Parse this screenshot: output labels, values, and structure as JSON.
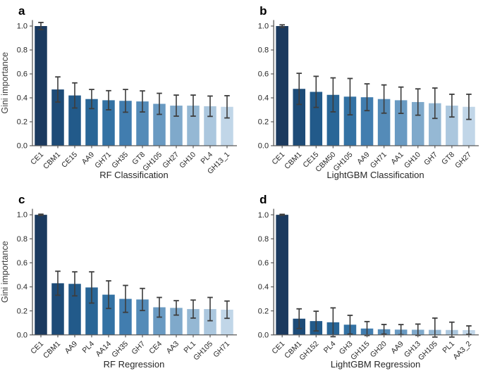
{
  "figure": {
    "background": "#ffffff",
    "bar_palette": [
      "#1b3a5f",
      "#1d4b77",
      "#225a8a",
      "#296697",
      "#3372a4",
      "#417daf",
      "#548bb8",
      "#699ac2",
      "#7fa9cb",
      "#95b8d4",
      "#abc7de",
      "#c1d6e8"
    ],
    "error_color": "#3d3d3d",
    "axis_color": "#5a5a5a",
    "tick_label_color": "#262626",
    "axis_label_color": "#404040",
    "letter_color": "#000000"
  },
  "chart_data": [
    {
      "type": "bar",
      "panel": "a",
      "xlabel": "RF Classification",
      "ylabel": "Gini importance",
      "ylim": [
        0,
        1.05
      ],
      "yticks": [
        "0.0",
        "0.2",
        "0.4",
        "0.6",
        "0.8",
        "1.0"
      ],
      "grid": false,
      "legend": "none",
      "categories": [
        "CE1",
        "CBM1",
        "CE15",
        "AA9",
        "GH71",
        "GH35",
        "GT8",
        "GH105",
        "GH27",
        "GH10",
        "PL4",
        "GH13_1"
      ],
      "values": [
        1.0,
        0.47,
        0.42,
        0.39,
        0.38,
        0.375,
        0.37,
        0.35,
        0.335,
        0.335,
        0.33,
        0.325
      ],
      "errors": [
        0.03,
        0.105,
        0.105,
        0.08,
        0.08,
        0.095,
        0.088,
        0.088,
        0.088,
        0.088,
        0.085,
        0.093
      ]
    },
    {
      "type": "bar",
      "panel": "b",
      "xlabel": "LightGBM Classification",
      "ylabel": "",
      "ylim": [
        0,
        1.05
      ],
      "yticks": [
        "0.0",
        "0.2",
        "0.4",
        "0.6",
        "0.8",
        "1.0"
      ],
      "grid": false,
      "legend": "none",
      "categories": [
        "CE1",
        "CBM1",
        "CE15",
        "CBM50",
        "GH105",
        "AA9",
        "GH71",
        "AA1",
        "GH10",
        "GH7",
        "GT8",
        "GH27"
      ],
      "values": [
        1.0,
        0.475,
        0.45,
        0.425,
        0.41,
        0.405,
        0.39,
        0.38,
        0.365,
        0.355,
        0.335,
        0.325
      ],
      "errors": [
        0.01,
        0.13,
        0.13,
        0.142,
        0.152,
        0.112,
        0.118,
        0.11,
        0.11,
        0.127,
        0.095,
        0.105
      ]
    },
    {
      "type": "bar",
      "panel": "c",
      "xlabel": "RF Regression",
      "ylabel": "Gini importance",
      "ylim": [
        0,
        1.05
      ],
      "yticks": [
        "0.0",
        "0.2",
        "0.4",
        "0.6",
        "0.8",
        "1.0"
      ],
      "grid": false,
      "legend": "none",
      "categories": [
        "CE1",
        "CBM1",
        "AA9",
        "PL4",
        "AA14",
        "GH35",
        "GH7",
        "CE4",
        "AA3",
        "PL1",
        "GH105",
        "GH71"
      ],
      "values": [
        1.0,
        0.43,
        0.425,
        0.395,
        0.335,
        0.3,
        0.295,
        0.23,
        0.225,
        0.215,
        0.215,
        0.21
      ],
      "errors": [
        0.005,
        0.1,
        0.1,
        0.13,
        0.115,
        0.112,
        0.092,
        0.082,
        0.06,
        0.075,
        0.097,
        0.072
      ]
    },
    {
      "type": "bar",
      "panel": "d",
      "xlabel": "LightGBM Regression",
      "ylabel": "",
      "ylim": [
        0,
        1.05
      ],
      "yticks": [
        "0.0",
        "0.2",
        "0.4",
        "0.6",
        "0.8",
        "1.0"
      ],
      "grid": false,
      "legend": "none",
      "categories": [
        "CE1",
        "CBM1",
        "GH152",
        "PL4",
        "GH3",
        "GH115",
        "GH20",
        "AA9",
        "GH13",
        "GH105",
        "PL1",
        "AA3_2"
      ],
      "values": [
        1.0,
        0.135,
        0.115,
        0.105,
        0.085,
        0.053,
        0.047,
        0.044,
        0.043,
        0.042,
        0.041,
        0.04
      ],
      "errors": [
        0.004,
        0.082,
        0.082,
        0.12,
        0.078,
        0.058,
        0.04,
        0.042,
        0.047,
        0.098,
        0.065,
        0.035
      ]
    }
  ]
}
